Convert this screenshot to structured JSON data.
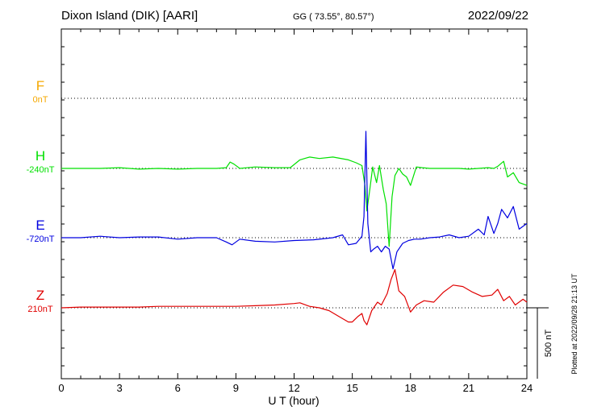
{
  "header": {
    "station": "Dixon Island (DIK)  [AARI]",
    "coords": "GG ( 73.55°,  80.57°)",
    "date": "2022/09/22"
  },
  "footer": {
    "plotted": "Plotted at 2022/09/28 21:13 UT",
    "scale_label": "500 nT"
  },
  "chart_data": {
    "type": "line",
    "xlabel": "U T (hour)",
    "xlim": [
      0,
      24
    ],
    "xticks": [
      0,
      3,
      6,
      9,
      12,
      15,
      18,
      21,
      24
    ],
    "scale_bar_nT": 500,
    "grid": "dotted baselines per channel",
    "channels": [
      {
        "name": "F",
        "baseline": "0nT",
        "color": "#f5a800",
        "t": [],
        "v": []
      },
      {
        "name": "H",
        "baseline": "-240nT",
        "color": "#00e000",
        "t": [
          0,
          1,
          2,
          3,
          4,
          5,
          6,
          7,
          8,
          8.5,
          8.7,
          8.9,
          9.2,
          10,
          11,
          11.8,
          12.3,
          12.8,
          13.3,
          14,
          14.8,
          15.2,
          15.5,
          15.65,
          15.75,
          15.9,
          16.05,
          16.25,
          16.4,
          16.6,
          16.75,
          16.9,
          17.05,
          17.2,
          17.4,
          17.6,
          17.8,
          18.0,
          18.3,
          18.6,
          19,
          19.5,
          20,
          20.5,
          21,
          21.5,
          22,
          22.3,
          22.5,
          22.8,
          23,
          23.3,
          23.6,
          24
        ],
        "v": [
          0,
          0,
          0,
          5,
          -5,
          0,
          -5,
          0,
          0,
          5,
          45,
          30,
          0,
          10,
          5,
          5,
          60,
          80,
          70,
          80,
          60,
          40,
          20,
          -120,
          -300,
          -150,
          10,
          -100,
          20,
          -150,
          -250,
          -550,
          -200,
          -50,
          0,
          -40,
          -60,
          -120,
          10,
          5,
          0,
          0,
          0,
          0,
          -5,
          0,
          5,
          0,
          15,
          50,
          -60,
          -30,
          -100,
          -120
        ]
      },
      {
        "name": "E",
        "baseline": "-720nT",
        "color": "#0000e0",
        "t": [
          0,
          1,
          2,
          3,
          4,
          5,
          6,
          7,
          8,
          8.5,
          8.8,
          9.2,
          10,
          11,
          12,
          13,
          14,
          14.5,
          14.8,
          15.2,
          15.5,
          15.6,
          15.7,
          15.8,
          15.95,
          16.1,
          16.3,
          16.5,
          16.7,
          16.9,
          17.1,
          17.3,
          17.6,
          17.9,
          18.2,
          18.5,
          19,
          19.5,
          20,
          20.5,
          21,
          21.5,
          21.8,
          22,
          22.3,
          22.5,
          22.7,
          23,
          23.3,
          23.6,
          24
        ],
        "v": [
          0,
          0,
          10,
          0,
          5,
          5,
          -10,
          0,
          0,
          -30,
          -50,
          -10,
          -25,
          -30,
          -20,
          -15,
          0,
          20,
          -50,
          -40,
          10,
          150,
          750,
          100,
          -100,
          -80,
          -60,
          -100,
          -60,
          -80,
          -220,
          -100,
          -40,
          -20,
          -10,
          -10,
          0,
          5,
          20,
          0,
          10,
          60,
          20,
          150,
          30,
          100,
          200,
          140,
          220,
          60,
          100
        ]
      },
      {
        "name": "Z",
        "baseline": "210nT",
        "color": "#e00000",
        "t": [
          0,
          1,
          2,
          3,
          4,
          5,
          6,
          7,
          8,
          9,
          10,
          11,
          12,
          12.3,
          12.8,
          13.3,
          13.8,
          14.3,
          14.8,
          15.0,
          15.3,
          15.5,
          15.6,
          15.75,
          16.0,
          16.3,
          16.5,
          16.8,
          17.0,
          17.2,
          17.4,
          17.7,
          18.0,
          18.3,
          18.7,
          19.2,
          19.7,
          20.2,
          20.7,
          21.2,
          21.7,
          22.2,
          22.5,
          22.8,
          23.1,
          23.4,
          23.8,
          24
        ],
        "v": [
          0,
          5,
          5,
          5,
          5,
          10,
          10,
          10,
          10,
          10,
          15,
          20,
          30,
          35,
          10,
          0,
          -20,
          -60,
          -100,
          -100,
          -60,
          -40,
          -90,
          -120,
          -20,
          40,
          20,
          100,
          200,
          270,
          120,
          80,
          -30,
          20,
          50,
          40,
          110,
          160,
          150,
          110,
          80,
          90,
          130,
          50,
          80,
          20,
          60,
          40
        ]
      }
    ]
  }
}
